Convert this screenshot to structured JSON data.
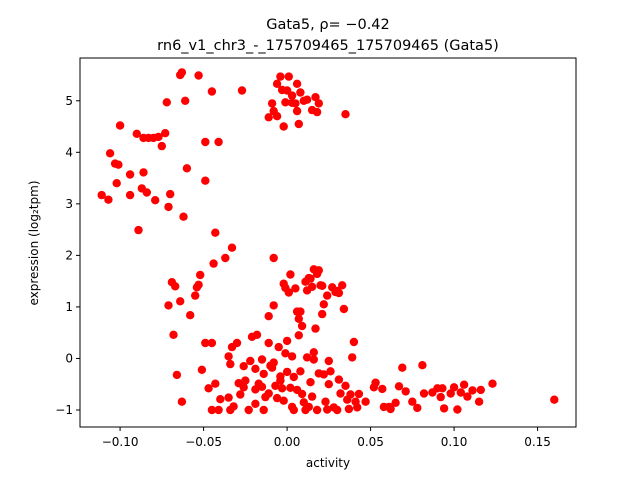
{
  "chart_data": {
    "type": "scatter",
    "title_line1": "Gata5, ρ= −0.42",
    "title_line2": "rn6_v1_chr3_-_175709465_175709465 (Gata5)",
    "xlabel": "activity",
    "ylabel": "expression (log₂tpm)",
    "xlim": [
      -0.124,
      0.173
    ],
    "ylim": [
      -1.33,
      5.83
    ],
    "xticks": [
      -0.1,
      -0.05,
      0.0,
      0.05,
      0.1,
      0.15
    ],
    "xtick_labels": [
      "−0.10",
      "−0.05",
      "0.00",
      "0.05",
      "0.10",
      "0.15"
    ],
    "yticks": [
      -1,
      0,
      1,
      2,
      3,
      4,
      5
    ],
    "ytick_labels": [
      "−1",
      "0",
      "1",
      "2",
      "3",
      "4",
      "5"
    ],
    "grid": false,
    "marker_color": "#ff0000",
    "points": [
      [
        -0.111,
        3.17
      ],
      [
        -0.107,
        3.08
      ],
      [
        -0.106,
        3.98
      ],
      [
        -0.103,
        3.78
      ],
      [
        -0.101,
        3.76
      ],
      [
        -0.102,
        3.4
      ],
      [
        -0.1,
        4.52
      ],
      [
        -0.094,
        3.57
      ],
      [
        -0.094,
        3.17
      ],
      [
        -0.09,
        4.36
      ],
      [
        -0.089,
        2.49
      ],
      [
        -0.087,
        3.3
      ],
      [
        -0.086,
        4.28
      ],
      [
        -0.086,
        3.61
      ],
      [
        -0.084,
        3.22
      ],
      [
        -0.083,
        4.28
      ],
      [
        -0.08,
        4.28
      ],
      [
        -0.079,
        3.07
      ],
      [
        -0.077,
        4.3
      ],
      [
        -0.075,
        4.12
      ],
      [
        -0.073,
        4.37
      ],
      [
        -0.072,
        4.97
      ],
      [
        -0.07,
        3.19
      ],
      [
        -0.071,
        2.94
      ],
      [
        -0.062,
        2.75
      ],
      [
        -0.064,
        5.5
      ],
      [
        -0.063,
        5.55
      ],
      [
        -0.061,
        5.0
      ],
      [
        -0.06,
        3.69
      ],
      [
        -0.053,
        5.49
      ],
      [
        -0.049,
        4.2
      ],
      [
        -0.049,
        3.45
      ],
      [
        -0.045,
        5.18
      ],
      [
        -0.041,
        4.2
      ],
      [
        -0.043,
        2.44
      ],
      [
        -0.044,
        1.84
      ],
      [
        -0.037,
        1.95
      ],
      [
        -0.033,
        2.15
      ],
      [
        -0.027,
        5.2
      ],
      [
        -0.006,
        5.33
      ],
      [
        -0.004,
        5.47
      ],
      [
        -0.003,
        5.21
      ],
      [
        0.0,
        5.2
      ],
      [
        0.001,
        5.47
      ],
      [
        -0.001,
        4.97
      ],
      [
        0.003,
        5.1
      ],
      [
        0.006,
        5.33
      ],
      [
        0.008,
        5.16
      ],
      [
        0.01,
        5.0
      ],
      [
        0.005,
        4.95
      ],
      [
        0.003,
        4.96
      ],
      [
        0.006,
        4.8
      ],
      [
        -0.009,
        4.95
      ],
      [
        -0.008,
        4.8
      ],
      [
        -0.011,
        4.68
      ],
      [
        -0.006,
        4.7
      ],
      [
        0.007,
        4.55
      ],
      [
        -0.002,
        4.5
      ],
      [
        0.017,
        5.07
      ],
      [
        0.019,
        4.95
      ],
      [
        0.018,
        4.78
      ],
      [
        0.035,
        4.74
      ],
      [
        0.012,
        5.02
      ],
      [
        0.015,
        4.82
      ],
      [
        -0.069,
        1.48
      ],
      [
        -0.067,
        1.4
      ],
      [
        -0.071,
        1.03
      ],
      [
        -0.068,
        0.46
      ],
      [
        -0.066,
        -0.32
      ],
      [
        -0.063,
        -0.84
      ],
      [
        -0.058,
        0.84
      ],
      [
        -0.055,
        1.22
      ],
      [
        -0.054,
        1.38
      ],
      [
        -0.053,
        1.43
      ],
      [
        -0.052,
        1.62
      ],
      [
        -0.064,
        1.11
      ],
      [
        -0.051,
        -0.22
      ],
      [
        -0.049,
        0.3
      ],
      [
        -0.045,
        0.3
      ],
      [
        -0.047,
        -0.58
      ],
      [
        -0.045,
        -1.0
      ],
      [
        -0.041,
        -1.0
      ],
      [
        -0.043,
        -0.49
      ],
      [
        -0.04,
        -0.79
      ],
      [
        -0.035,
        0.04
      ],
      [
        -0.034,
        -0.11
      ],
      [
        -0.033,
        0.22
      ],
      [
        -0.03,
        0.3
      ],
      [
        -0.029,
        -0.48
      ],
      [
        -0.035,
        -0.76
      ],
      [
        -0.032,
        -0.93
      ],
      [
        -0.034,
        -1.0
      ],
      [
        -0.025,
        -0.43
      ],
      [
        -0.026,
        -0.56
      ],
      [
        -0.023,
        -1.0
      ],
      [
        -0.021,
        0.42
      ],
      [
        -0.018,
        0.46
      ],
      [
        -0.019,
        -0.2
      ],
      [
        -0.019,
        -0.88
      ],
      [
        -0.015,
        -0.02
      ],
      [
        -0.014,
        -0.3
      ],
      [
        -0.015,
        -0.55
      ],
      [
        -0.014,
        -1.0
      ],
      [
        -0.011,
        0.82
      ],
      [
        -0.01,
        -0.14
      ],
      [
        -0.011,
        -0.68
      ],
      [
        -0.008,
        1.95
      ],
      [
        -0.008,
        1.03
      ],
      [
        -0.008,
        -0.08
      ],
      [
        -0.007,
        -0.53
      ],
      [
        -0.006,
        -0.77
      ],
      [
        -0.005,
        0.22
      ],
      [
        -0.004,
        -0.43
      ],
      [
        -0.003,
        -0.58
      ],
      [
        -0.002,
        1.45
      ],
      [
        -0.001,
        1.37
      ],
      [
        0.0,
        0.34
      ],
      [
        0.0,
        -0.26
      ],
      [
        -0.002,
        -0.82
      ],
      [
        0.001,
        1.28
      ],
      [
        0.002,
        1.63
      ],
      [
        0.003,
        0.04
      ],
      [
        0.003,
        -0.94
      ],
      [
        0.004,
        -0.36
      ],
      [
        0.005,
        1.36
      ],
      [
        0.006,
        0.91
      ],
      [
        0.007,
        0.77
      ],
      [
        0.006,
        -0.61
      ],
      [
        0.008,
        0.91
      ],
      [
        0.009,
        0.63
      ],
      [
        0.009,
        -0.69
      ],
      [
        0.01,
        -0.85
      ],
      [
        0.011,
        1.49
      ],
      [
        0.012,
        1.32
      ],
      [
        0.013,
        1.56
      ],
      [
        0.014,
        1.55
      ],
      [
        0.012,
        0.02
      ],
      [
        0.013,
        -0.94
      ],
      [
        0.015,
        1.39
      ],
      [
        0.016,
        1.73
      ],
      [
        0.018,
        1.64
      ],
      [
        0.019,
        1.71
      ],
      [
        0.017,
        0.58
      ],
      [
        0.016,
        -0.02
      ],
      [
        0.015,
        -0.74
      ],
      [
        0.02,
        1.42
      ],
      [
        0.021,
        1.41
      ],
      [
        0.022,
        1.05
      ],
      [
        0.021,
        0.86
      ],
      [
        0.022,
        -0.31
      ],
      [
        0.023,
        -0.84
      ],
      [
        0.024,
        1.22
      ],
      [
        0.025,
        -0.5
      ],
      [
        0.027,
        1.38
      ],
      [
        0.029,
        1.29
      ],
      [
        0.03,
        1.31
      ],
      [
        0.031,
        1.27
      ],
      [
        0.028,
        -0.95
      ],
      [
        0.032,
        -0.68
      ],
      [
        0.033,
        1.42
      ],
      [
        0.034,
        0.96
      ],
      [
        0.035,
        -0.53
      ],
      [
        0.036,
        -0.8
      ],
      [
        0.038,
        -0.7
      ],
      [
        0.039,
        0.02
      ],
      [
        0.04,
        0.32
      ],
      [
        0.041,
        -0.84
      ],
      [
        0.042,
        -0.95
      ],
      [
        0.043,
        -0.69
      ],
      [
        0.047,
        -0.84
      ],
      [
        0.052,
        -0.56
      ],
      [
        0.053,
        -0.47
      ],
      [
        0.057,
        -0.59
      ],
      [
        0.058,
        -0.94
      ],
      [
        0.061,
        -0.94
      ],
      [
        0.062,
        -0.98
      ],
      [
        0.065,
        -0.86
      ],
      [
        0.067,
        -0.54
      ],
      [
        0.069,
        -0.18
      ],
      [
        0.071,
        -0.64
      ],
      [
        0.075,
        -0.84
      ],
      [
        0.078,
        -0.96
      ],
      [
        0.081,
        -0.13
      ],
      [
        0.082,
        -0.68
      ],
      [
        0.087,
        -0.66
      ],
      [
        0.09,
        -0.58
      ],
      [
        0.092,
        -0.75
      ],
      [
        0.093,
        -0.58
      ],
      [
        0.094,
        -0.97
      ],
      [
        0.098,
        -0.68
      ],
      [
        0.1,
        -0.56
      ],
      [
        0.102,
        -0.99
      ],
      [
        0.104,
        -0.66
      ],
      [
        0.106,
        -0.51
      ],
      [
        0.108,
        -0.74
      ],
      [
        0.111,
        -0.62
      ],
      [
        0.115,
        -0.84
      ],
      [
        0.116,
        -0.61
      ],
      [
        0.123,
        -0.49
      ],
      [
        0.16,
        -0.8
      ],
      [
        -0.009,
        -0.18
      ],
      [
        -0.004,
        -0.35
      ],
      [
        0.002,
        -0.57
      ],
      [
        0.008,
        -0.25
      ],
      [
        0.014,
        -0.46
      ],
      [
        0.019,
        -0.29
      ],
      [
        0.026,
        -0.25
      ],
      [
        0.031,
        -0.41
      ],
      [
        -0.017,
        -0.49
      ],
      [
        -0.013,
        -0.75
      ],
      [
        -0.019,
        -0.6
      ],
      [
        -0.028,
        -0.7
      ],
      [
        0.004,
        -1.0
      ],
      [
        0.011,
        -1.0
      ],
      [
        0.018,
        -1.0
      ],
      [
        0.024,
        -0.99
      ],
      [
        0.03,
        -1.0
      ],
      [
        0.037,
        -0.98
      ],
      [
        -0.026,
        -0.15
      ],
      [
        -0.022,
        -0.05
      ],
      [
        -0.001,
        0.1
      ],
      [
        0.016,
        0.12
      ],
      [
        0.025,
        -0.05
      ],
      [
        -0.011,
        0.3
      ],
      [
        0.007,
        0.45
      ]
    ]
  }
}
